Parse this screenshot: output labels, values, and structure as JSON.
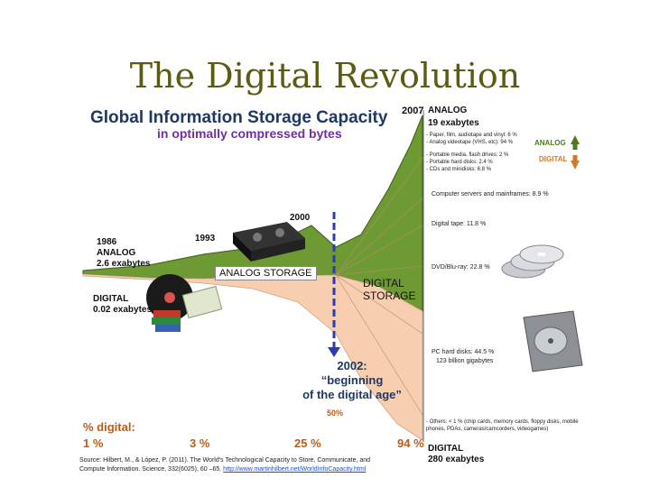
{
  "slide_title": "The Digital Revolution",
  "colors": {
    "analog": "#6e9a34",
    "digital": "#f7cfb0",
    "title": "#1f3864",
    "subtitle": "#7030a0",
    "percent": "#c55a11"
  },
  "chart_data": {
    "type": "area",
    "title": "Global Information Storage Capacity",
    "subtitle": "in optimally compressed bytes",
    "x": [
      1986,
      1993,
      2000,
      2002,
      2007
    ],
    "series": [
      {
        "name": "ANALOG",
        "values": [
          2.6,
          null,
          null,
          null,
          19
        ]
      },
      {
        "name": "DIGITAL",
        "values": [
          0.02,
          null,
          null,
          null,
          280
        ]
      }
    ],
    "percent_digital": [
      "1 %",
      "3 %",
      "25 %",
      "94 %"
    ],
    "percent_2002": "50%"
  },
  "labels": {
    "y1986": "1986",
    "analog_1986": "ANALOG",
    "analog_1986_val": "2.6 exabytes",
    "digital_1986": "DIGITAL",
    "digital_1986_val": "0.02 exabytes",
    "y1993": "1993",
    "y2000": "2000",
    "analog_storage": "ANALOG STORAGE",
    "digital_storage_1": "DIGITAL",
    "digital_storage_2": "STORAGE",
    "y2002": "2002:",
    "beginning": "“beginning",
    "digital_age": "of the digital age”",
    "pct_label": "% digital:",
    "y2007": "2007",
    "analog_2007": "ANALOG",
    "analog_2007_val": "19 exabytes",
    "digital_2007": "DIGITAL",
    "digital_2007_val": "280 exabytes",
    "legend_analog": "ANALOG",
    "legend_digital": "DIGITAL"
  },
  "analog_breakdown": [
    "- Paper, film, audiotape and vinyl: 6 %",
    "- Analog videotape (VHS, etc): 94 %"
  ],
  "digital_breakdown": [
    "- Portable media, flash drives: 2 %",
    "- Portable hard disks: 2.4 %",
    "- CDs and minidisks: 6.8 %",
    "Computer servers and mainframes: 8.9 %",
    "Digital tape: 11.8 %",
    "DVD/Blu-ray: 22.8 %",
    "PC hard disks: 44.5 %",
    "123 billion gigabytes",
    "- Others: < 1 % (chip cards, memory cards, floppy disks, mobile phones, PDAs, cameras/camcorders, videogames)"
  ],
  "source": {
    "line1": "Source: Hilbert, M., & López, P. (2011). The World's Technological Capacity to Store, Communicate, and",
    "line2": "Compute Information. Science, 332(6025), 60 –65.",
    "link": "http://www.martinhilbert.net/WorldInfoCapacity.html"
  }
}
